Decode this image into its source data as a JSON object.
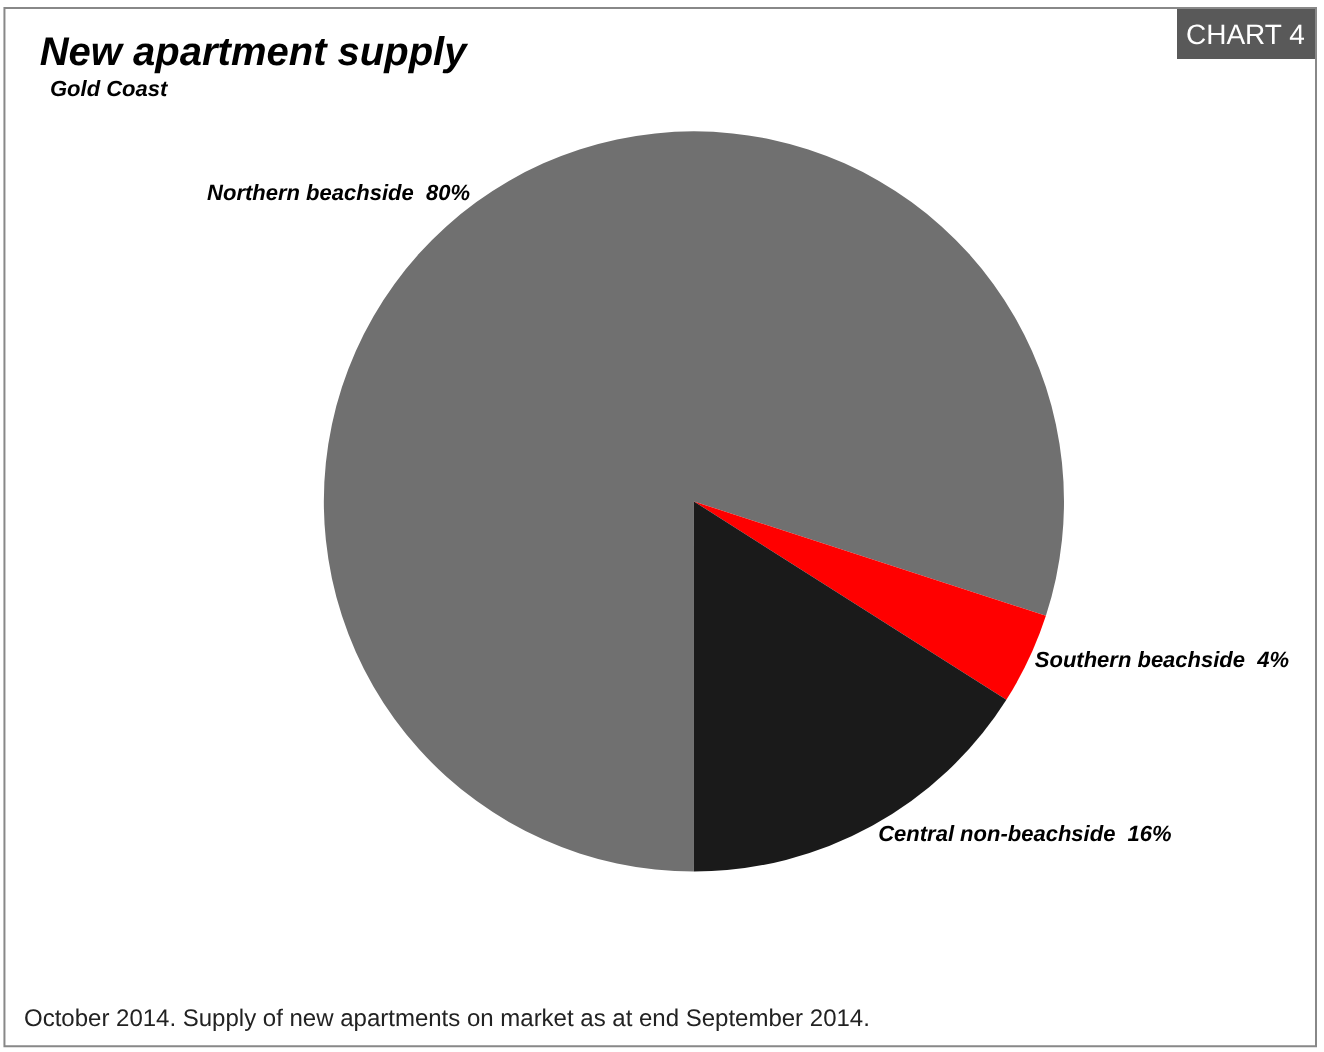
{
  "chart_data": {
    "type": "pie",
    "title": "New apartment supply",
    "subtitle": "Gold Coast",
    "categories": [
      "Northern beachside",
      "Southern beachside",
      "Central non-beachside"
    ],
    "values": [
      80,
      4,
      16
    ],
    "colors": [
      "#707070",
      "#ff0000",
      "#1a1a1a"
    ],
    "value_labels": [
      "80%",
      "4%",
      "16%"
    ],
    "legend": false,
    "annotations": [
      "CHART 4",
      "October 2014. Supply of new apartments on market as at end September 2014."
    ]
  }
}
